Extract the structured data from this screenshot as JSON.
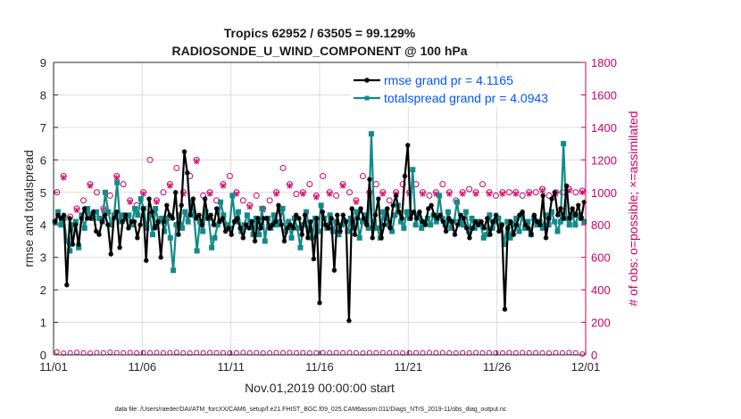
{
  "chart_data": {
    "type": "line",
    "title_line1": "Tropics 62952 / 63505 = 99.129%",
    "title_line2": "RADIOSONDE_U_WIND_COMPONENT @ 100 hPa",
    "xlabel": "Nov.01,2019 00:00:00 start",
    "ylabel": "rmse and totalspread",
    "ylabel_right": "# of obs: o=possible; ×=assimilated",
    "xlim": [
      0,
      30
    ],
    "ylim": [
      0,
      9
    ],
    "ylim_right": [
      0,
      1800
    ],
    "x_tick_labels": [
      "11/01",
      "11/06",
      "11/11",
      "11/16",
      "11/21",
      "11/26",
      "12/01"
    ],
    "y_tick_labels": [
      "0",
      "1",
      "2",
      "3",
      "4",
      "5",
      "6",
      "7",
      "8",
      "9"
    ],
    "y_right_tick_labels": [
      "0",
      "200",
      "400",
      "600",
      "800",
      "1000",
      "1200",
      "1400",
      "1600",
      "1800"
    ],
    "colors": {
      "rmse": "#000000",
      "spread": "#138a8a",
      "obs": "#cc0066",
      "legend_text": "#0055ff"
    },
    "series": [
      {
        "name": "rmse grand pr = 4.1165",
        "key": "rmse",
        "values": [
          4.1,
          4.3,
          4.2,
          4.3,
          2.15,
          4.2,
          3.4,
          4.0,
          3.4,
          4.2,
          4.5,
          4.2,
          4.2,
          4.4,
          3.8,
          3.7,
          4.1,
          4.3,
          4.0,
          3.1,
          4.2,
          4.4,
          3.3,
          4.1,
          4.3,
          3.9,
          4.1,
          4.1,
          3.6,
          4.0,
          4.5,
          2.9,
          4.8,
          4.4,
          3.9,
          4.1,
          3.0,
          4.1,
          4.6,
          4.3,
          4.2,
          5.0,
          3.7,
          4.6,
          6.25,
          5.6,
          4.3,
          4.8,
          4.2,
          4.3,
          4.0,
          4.8,
          4.2,
          4.3,
          4.0,
          4.5,
          4.1,
          4.2,
          3.8,
          3.9,
          3.7,
          4.1,
          4.2,
          3.9,
          3.6,
          4.0,
          3.9,
          4.1,
          3.5,
          4.2,
          3.9,
          4.2,
          4.2,
          3.9,
          4.0,
          4.1,
          4.6,
          4.0,
          3.5,
          3.9,
          4.0,
          3.9,
          4.3,
          4.2,
          3.7,
          4.3,
          3.6,
          4.1,
          2.95,
          4.2,
          1.6,
          4.4,
          4.0,
          3.9,
          4.2,
          2.6,
          4.3,
          3.8,
          4.3,
          4.1,
          1.05,
          4.5,
          3.7,
          4.2,
          4.5,
          4.2,
          4.0,
          5.4,
          3.6,
          4.3,
          4.8,
          3.6,
          4.0,
          4.5,
          3.9,
          4.6,
          4.9,
          4.4,
          4.2,
          5.5,
          6.45,
          4.2,
          4.4,
          4.2,
          4.4,
          4.1,
          4.0,
          4.5,
          4.6,
          4.3,
          4.2,
          4.3,
          4.1,
          3.8,
          4.2,
          4.1,
          3.7,
          4.0,
          4.3,
          4.2,
          3.9,
          3.6,
          3.9,
          4.1,
          4.0,
          4.1,
          3.9,
          4.2,
          3.7,
          4.1,
          4.3,
          3.8,
          4.0,
          1.4,
          3.9,
          4.1,
          3.7,
          4.0,
          4.3,
          4.4,
          4.0,
          3.9,
          3.7,
          4.3,
          4.1,
          4.0,
          4.9,
          3.6,
          4.2,
          4.8,
          5.0,
          4.3,
          4.5,
          4.2,
          5.2,
          4.2,
          4.5,
          4.3,
          4.6,
          4.2,
          4.7
        ]
      },
      {
        "name": "totalspread grand pr = 4.0943",
        "key": "spread",
        "values": [
          4.1,
          4.4,
          4.0,
          4.2,
          3.5,
          3.2,
          4.0,
          4.1,
          3.3,
          4.3,
          3.9,
          4.5,
          4.3,
          4.2,
          4.4,
          4.2,
          4.1,
          5.0,
          4.4,
          4.0,
          4.3,
          5.3,
          4.1,
          4.3,
          4.2,
          4.3,
          4.0,
          4.5,
          4.3,
          4.8,
          4.5,
          3.9,
          4.3,
          3.7,
          4.5,
          4.1,
          4.2,
          3.8,
          4.2,
          3.6,
          2.6,
          4.0,
          4.3,
          3.9,
          4.4,
          4.1,
          4.7,
          4.3,
          3.2,
          4.1,
          3.8,
          4.4,
          4.2,
          3.3,
          3.6,
          4.0,
          4.7,
          4.3,
          4.0,
          3.9,
          4.9,
          4.1,
          4.4,
          3.8,
          4.0,
          4.3,
          4.1,
          3.7,
          4.2,
          3.7,
          4.5,
          3.5,
          4.2,
          3.9,
          4.3,
          4.0,
          4.1,
          4.5,
          3.8,
          4.1,
          3.6,
          4.2,
          3.9,
          3.3,
          4.0,
          4.4,
          3.9,
          3.6,
          4.2,
          3.8,
          4.6,
          4.2,
          3.9,
          4.3,
          3.8,
          4.1,
          3.7,
          4.0,
          4.1,
          3.8,
          4.2,
          3.9,
          4.4,
          3.6,
          4.1,
          4.3,
          3.9,
          6.8,
          4.1,
          3.9,
          3.6,
          4.4,
          4.2,
          4.0,
          3.8,
          4.3,
          4.6,
          4.1,
          3.9,
          4.4,
          4.2,
          5.7,
          4.0,
          4.3,
          3.9,
          4.1,
          4.2,
          4.0,
          4.3,
          4.1,
          4.9,
          4.2,
          4.0,
          4.4,
          3.9,
          4.1,
          4.7,
          4.1,
          4.0,
          4.4,
          3.8,
          4.2,
          3.9,
          4.1,
          4.0,
          3.6,
          3.7,
          4.3,
          3.9,
          4.1,
          4.2,
          4.0,
          3.4,
          4.1,
          3.6,
          4.0,
          4.2,
          3.8,
          4.3,
          3.9,
          4.1,
          3.7,
          4.2,
          4.0,
          4.1,
          3.9,
          4.3,
          4.0,
          4.4,
          4.1,
          3.8,
          4.1,
          6.5,
          4.2,
          4.0,
          4.3,
          4.0,
          4.3,
          4.2,
          4.1
        ]
      }
    ],
    "obs_possible_values": [
      1000,
      1100,
      850,
      900,
      950,
      1050,
      1000,
      900,
      980,
      1100,
      1050,
      950,
      920,
      1000,
      1200,
      950,
      1000,
      1050,
      1150,
      1000,
      1100,
      1200,
      980,
      1000,
      950,
      1050,
      1100,
      1000,
      950,
      920,
      980,
      900,
      950,
      1000,
      1150,
      1050,
      990,
      1000,
      1050,
      980,
      1100,
      1000,
      980,
      1050,
      1000,
      950,
      1100,
      1000,
      1050,
      1000,
      950,
      1000,
      1050,
      1000,
      1050,
      1000,
      980,
      1000,
      1050,
      1000,
      950,
      1000,
      1020,
      1000,
      1050,
      1000,
      980,
      1000,
      1000,
      1000,
      980,
      1000,
      1000,
      1020,
      980,
      1000,
      1000,
      1020,
      1000,
      1010
    ],
    "obs_assimilated_values": [
      990,
      1090,
      840,
      890,
      940,
      1040,
      990,
      890,
      970,
      1090,
      1040,
      940,
      910,
      990,
      1190,
      940,
      990,
      1040,
      1140,
      990,
      1090,
      1190,
      970,
      990,
      940,
      1040,
      1090,
      990,
      940,
      910,
      970,
      890,
      940,
      990,
      1140,
      1040,
      980,
      990,
      1040,
      970,
      1090,
      990,
      970,
      1040,
      990,
      940,
      1090,
      990,
      1040,
      990,
      940,
      990,
      1040,
      990,
      1040,
      990,
      970,
      990,
      1040,
      990,
      940,
      990,
      1010,
      990,
      1040,
      990,
      970,
      990,
      990,
      990,
      970,
      990,
      990,
      1010,
      970,
      990,
      990,
      1010,
      990,
      1000
    ],
    "obs_rejected_values": [
      18,
      10,
      12,
      15,
      12,
      10,
      14,
      12,
      16,
      13,
      12,
      14,
      11,
      13,
      12,
      14,
      12,
      13,
      15,
      12,
      11,
      13,
      12,
      14,
      12,
      13,
      11,
      12,
      14,
      12,
      13,
      11,
      12,
      13,
      12,
      14,
      12,
      13,
      11,
      12,
      13,
      12,
      14,
      12,
      13,
      12,
      11,
      13,
      12,
      14,
      12,
      13,
      11,
      12,
      13,
      12,
      14,
      12,
      13,
      12,
      11,
      13,
      12,
      14,
      12,
      13,
      11,
      12,
      13,
      12,
      14,
      12,
      13,
      12,
      11,
      13,
      12,
      14,
      12,
      5
    ],
    "footnote": "data file: /Users/raeder/DAI/ATM_forcXX/CAM6_setup/f.e21.FHIST_BGC.f09_025.CAM6assim.011/Diags_NTrS_2019-11/obs_diag_output.nc"
  }
}
